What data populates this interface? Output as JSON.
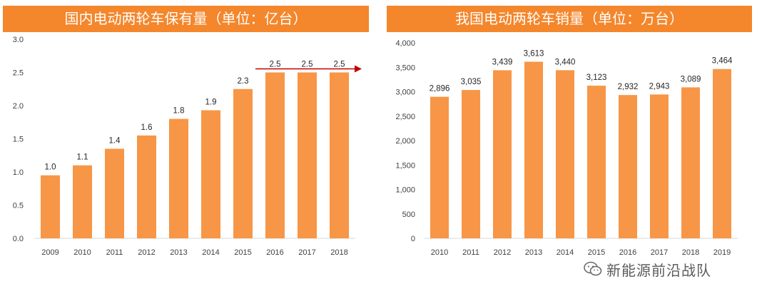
{
  "chart_data": [
    {
      "type": "bar",
      "title": "国内电动两轮车保有量（单位：亿台）",
      "categories": [
        "2009",
        "2010",
        "2011",
        "2012",
        "2013",
        "2014",
        "2015",
        "2016",
        "2017",
        "2018"
      ],
      "values": [
        0.95,
        1.1,
        1.35,
        1.55,
        1.8,
        1.93,
        2.25,
        2.5,
        2.5,
        2.5
      ],
      "data_labels": [
        "1.0",
        "1.1",
        "1.4",
        "1.6",
        "1.8",
        "1.9",
        "2.3",
        "2.5",
        "2.5",
        "2.5"
      ],
      "ylim": [
        0,
        3.0
      ],
      "yticks": [
        "0.0",
        "0.5",
        "1.0",
        "1.5",
        "2.0",
        "2.5",
        "3.0"
      ],
      "ytick_values": [
        0,
        0.5,
        1.0,
        1.5,
        2.0,
        2.5,
        3.0
      ],
      "bar_color": "#f79646",
      "annotation": "red arrow over 2016–2018 bars",
      "annotation_color": "#c00000",
      "xlabel": "",
      "ylabel": ""
    },
    {
      "type": "bar",
      "title": "我国电动两轮车销量（单位：万台）",
      "categories": [
        "2010",
        "2011",
        "2012",
        "2013",
        "2014",
        "2015",
        "2016",
        "2017",
        "2018",
        "2019"
      ],
      "values": [
        2896,
        3035,
        3439,
        3613,
        3440,
        3123,
        2932,
        2943,
        3089,
        3464
      ],
      "data_labels": [
        "2,896",
        "3,035",
        "3,439",
        "3,613",
        "3,440",
        "3,123",
        "2,932",
        "2,943",
        "3,089",
        "3,464"
      ],
      "ylim": [
        0,
        4000
      ],
      "yticks": [
        "0",
        "500",
        "1,000",
        "1,500",
        "2,000",
        "2,500",
        "3,000",
        "3,500",
        "4,000"
      ],
      "ytick_values": [
        0,
        500,
        1000,
        1500,
        2000,
        2500,
        3000,
        3500,
        4000
      ],
      "bar_color": "#f79646",
      "xlabel": "",
      "ylabel": ""
    }
  ],
  "watermark": {
    "text": "新能源前沿战队",
    "icon": "wechat-icon"
  },
  "colors": {
    "title_bar": "#f4862b",
    "title_text": "#ffffff"
  }
}
